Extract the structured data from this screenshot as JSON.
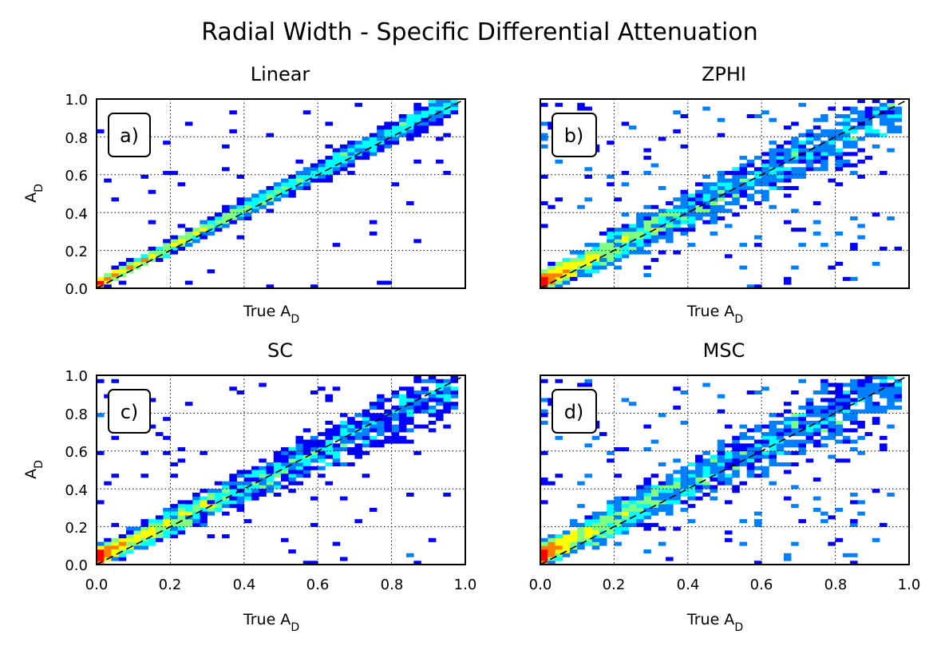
{
  "chart_data": {
    "type": "heatmap",
    "title": "Radial Width - Specific Differential Attenuation",
    "xlim": [
      0.0,
      1.0
    ],
    "ylim": [
      0.0,
      1.0
    ],
    "xticks": [
      "0.0",
      "0.2",
      "0.4",
      "0.6",
      "0.8",
      "1.0"
    ],
    "yticks": [
      "0.0",
      "0.2",
      "0.4",
      "0.6",
      "0.8",
      "1.0"
    ],
    "grid": true,
    "reference_line": {
      "style": "dashed",
      "from": [
        0.0,
        0.0
      ],
      "to": [
        1.0,
        1.0
      ]
    },
    "colormap": [
      "#00008f",
      "#0000ff",
      "#0080ff",
      "#00ffff",
      "#80ff80",
      "#ffff00",
      "#ff8000",
      "#ff0000"
    ],
    "panels": [
      {
        "title": "Linear",
        "label": "a)",
        "xlabel_main": "True A",
        "xlabel_sub": "D",
        "ylabel_main": "A",
        "ylabel_sub": "D",
        "show_xticks": false,
        "show_yticks": true,
        "spread": 0.035,
        "outlier_rate": 0.02,
        "slope": 1.0,
        "offset": 0.02
      },
      {
        "title": "ZPHI",
        "label": "b)",
        "xlabel_main": "True A",
        "xlabel_sub": "D",
        "ylabel_main": "",
        "ylabel_sub": "",
        "show_xticks": false,
        "show_yticks": false,
        "spread": 0.09,
        "outlier_rate": 0.08,
        "slope": 0.95,
        "offset": 0.03
      },
      {
        "title": "SC",
        "label": "c)",
        "xlabel_main": "True A",
        "xlabel_sub": "D",
        "ylabel_main": "A",
        "ylabel_sub": "D",
        "show_xticks": true,
        "show_yticks": true,
        "spread": 0.08,
        "outlier_rate": 0.05,
        "slope": 0.92,
        "offset": 0.04
      },
      {
        "title": "MSC",
        "label": "d)",
        "xlabel_main": "True A",
        "xlabel_sub": "D",
        "ylabel_main": "",
        "ylabel_sub": "",
        "show_xticks": true,
        "show_yticks": false,
        "spread": 0.1,
        "outlier_rate": 0.09,
        "slope": 0.95,
        "offset": 0.05
      }
    ]
  }
}
